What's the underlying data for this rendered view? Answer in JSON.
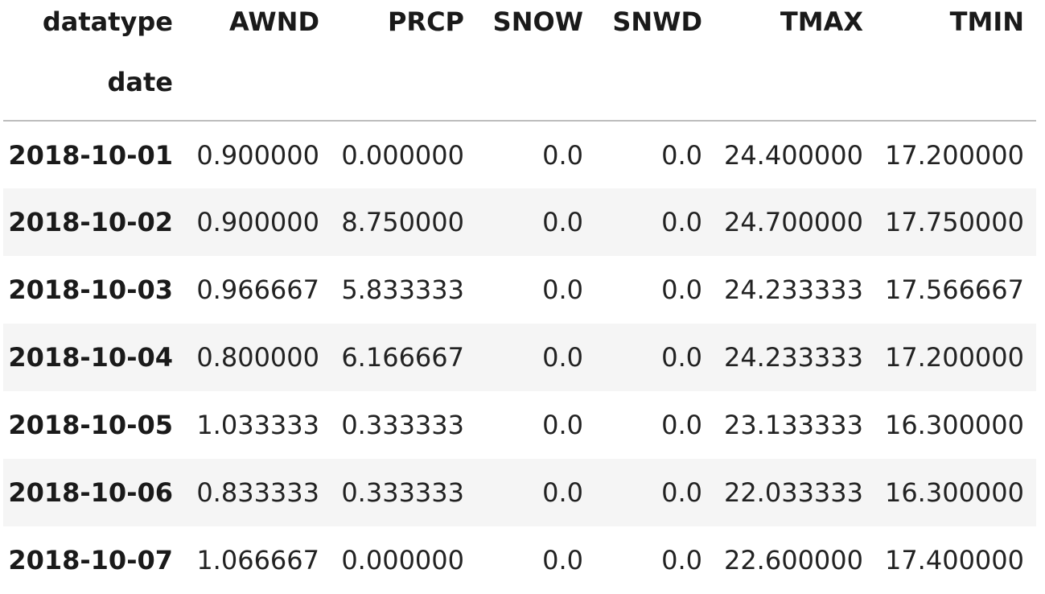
{
  "table": {
    "columns_label": "datatype",
    "index_label": "date",
    "columns": [
      "AWND",
      "PRCP",
      "SNOW",
      "SNWD",
      "TMAX",
      "TMIN"
    ],
    "rows": [
      {
        "date": "2018-10-01",
        "values": [
          "0.900000",
          "0.000000",
          "0.0",
          "0.0",
          "24.400000",
          "17.200000"
        ]
      },
      {
        "date": "2018-10-02",
        "values": [
          "0.900000",
          "8.750000",
          "0.0",
          "0.0",
          "24.700000",
          "17.750000"
        ]
      },
      {
        "date": "2018-10-03",
        "values": [
          "0.966667",
          "5.833333",
          "0.0",
          "0.0",
          "24.233333",
          "17.566667"
        ]
      },
      {
        "date": "2018-10-04",
        "values": [
          "0.800000",
          "6.166667",
          "0.0",
          "0.0",
          "24.233333",
          "17.200000"
        ]
      },
      {
        "date": "2018-10-05",
        "values": [
          "1.033333",
          "0.333333",
          "0.0",
          "0.0",
          "23.133333",
          "16.300000"
        ]
      },
      {
        "date": "2018-10-06",
        "values": [
          "0.833333",
          "0.333333",
          "0.0",
          "0.0",
          "22.033333",
          "16.300000"
        ]
      },
      {
        "date": "2018-10-07",
        "values": [
          "1.066667",
          "0.000000",
          "0.0",
          "0.0",
          "22.600000",
          "17.400000"
        ]
      }
    ]
  }
}
